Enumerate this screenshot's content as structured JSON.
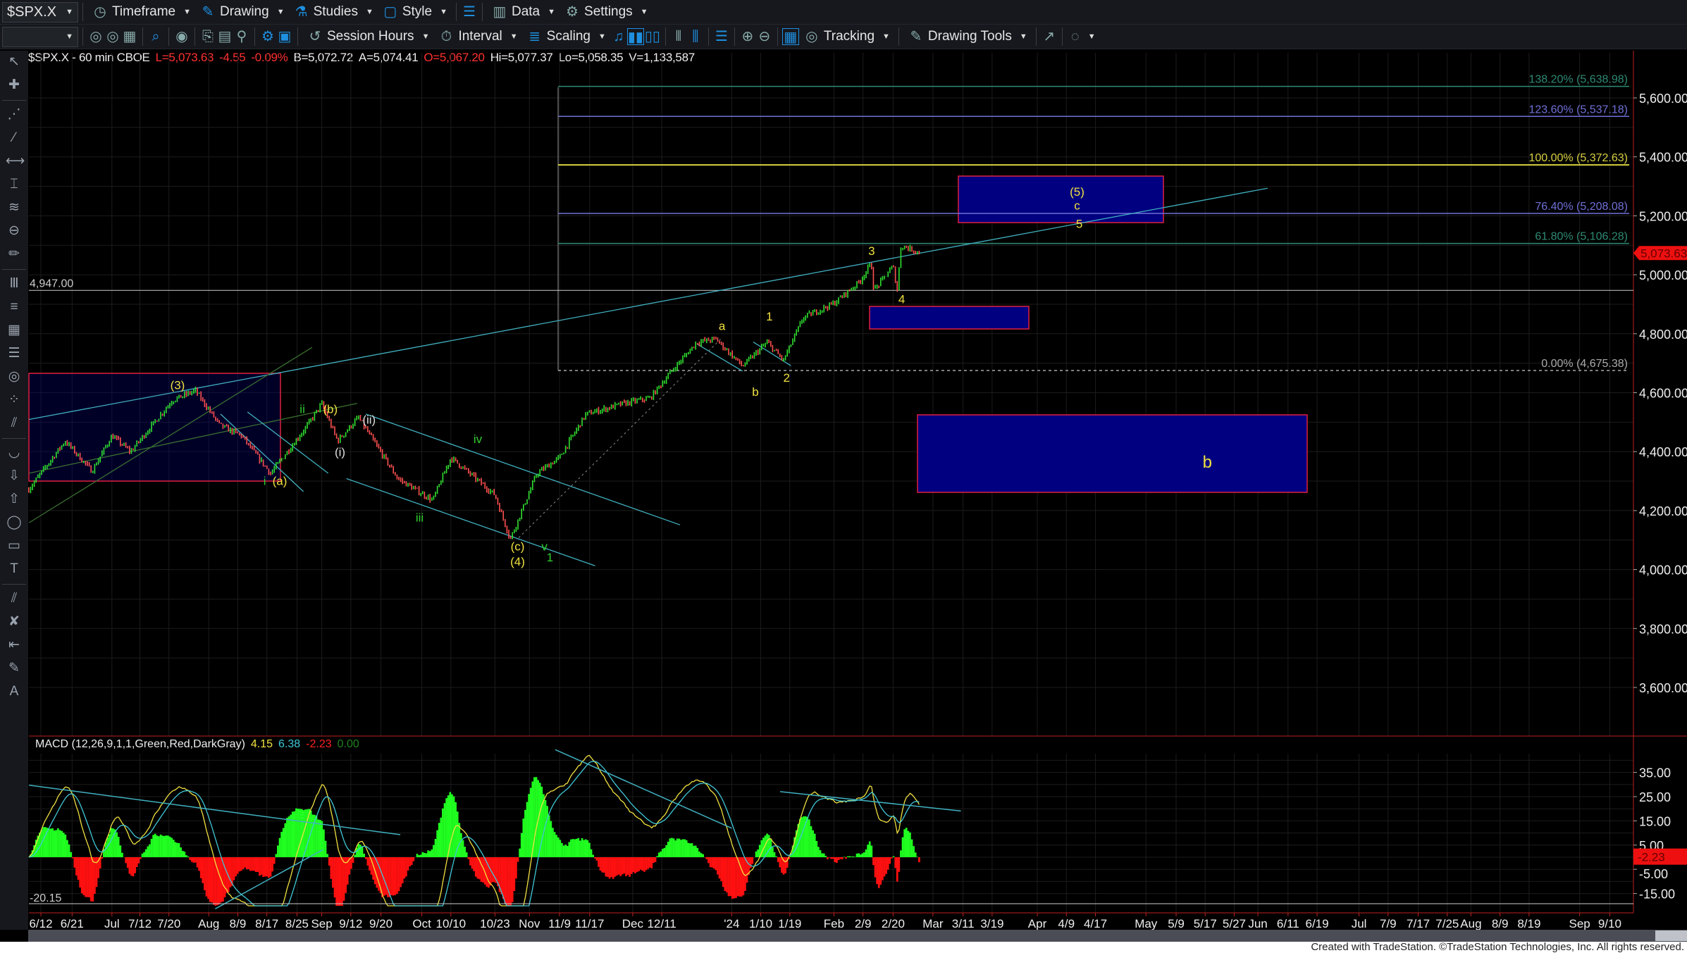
{
  "toolbar1": {
    "symbol": "$SPX.X",
    "items": [
      "Timeframe",
      "Drawing",
      "Studies",
      "Style",
      "Data",
      "Settings"
    ]
  },
  "toolbar2": {
    "items": [
      "Session Hours",
      "Interval",
      "Scaling",
      "Tracking",
      "Drawing Tools"
    ]
  },
  "info": {
    "symbol": "$SPX.X - 60 min  CBOE",
    "last": "L=5,073.63",
    "change": "-4.55",
    "pct": "-0.09%",
    "bid": "B=5,072.72",
    "ask": "A=5,074.41",
    "open": "O=5,067.20",
    "high": "Hi=5,077.37",
    "low": "Lo=5,058.35",
    "volume": "V=1,133,587"
  },
  "price_axis": {
    "labels": [
      "5,600.00",
      "5,400.00",
      "5,200.00",
      "5,000.00",
      "4,800.00",
      "4,600.00",
      "4,400.00",
      "4,200.00",
      "4,000.00",
      "3,800.00",
      "3,600.00"
    ],
    "last_tag": "5,073.63",
    "last": 5073.63
  },
  "horizontal_line": {
    "label": "4,947.00",
    "value": 4947
  },
  "fib": [
    {
      "label": "138.20% (5,638.98)",
      "value": 5638.98,
      "color": "#2e8b74"
    },
    {
      "label": "123.60% (5,537.18)",
      "value": 5537.18,
      "color": "#7070d8"
    },
    {
      "label": "100.00% (5,372.63)",
      "value": 5372.63,
      "color": "#d8d040"
    },
    {
      "label": "76.40% (5,208.08)",
      "value": 5208.08,
      "color": "#7070d8"
    },
    {
      "label": "61.80% (5,106.28)",
      "value": 5106.28,
      "color": "#2e8b74"
    },
    {
      "label": "0.00% (4,675.38)",
      "value": 4675.38,
      "color": "#aaaaaa"
    }
  ],
  "wave_labels": [
    {
      "t": "(3)",
      "c": "#f0e040"
    },
    {
      "t": "ii",
      "c": "#30d030"
    },
    {
      "t": "(b)",
      "c": "#f0e040"
    },
    {
      "t": "(ii)",
      "c": "#dddddd"
    },
    {
      "t": "(i)",
      "c": "#dddddd"
    },
    {
      "t": "i",
      "c": "#30d030"
    },
    {
      "t": "(a)",
      "c": "#f0e040"
    },
    {
      "t": "iii",
      "c": "#30d030"
    },
    {
      "t": "iv",
      "c": "#30d030"
    },
    {
      "t": "(c)",
      "c": "#f0e040"
    },
    {
      "t": "(4)",
      "c": "#f0e040"
    },
    {
      "t": "v",
      "c": "#30d030"
    },
    {
      "t": "1",
      "c": "#30d030"
    },
    {
      "t": "a",
      "c": "#f0e040"
    },
    {
      "t": "b",
      "c": "#f0e040"
    },
    {
      "t": "1",
      "c": "#f0e040"
    },
    {
      "t": "2",
      "c": "#f0e040"
    },
    {
      "t": "3",
      "c": "#f0e040"
    },
    {
      "t": "4",
      "c": "#f0e040"
    },
    {
      "t": "(5)",
      "c": "#f0e040"
    },
    {
      "t": "c",
      "c": "#f0e040"
    },
    {
      "t": "5",
      "c": "#f0e040"
    },
    {
      "t": "b",
      "c": "#f0e040"
    }
  ],
  "price_pivots": [
    [
      "2023-06-08",
      4272
    ],
    [
      "2023-06-19",
      4436
    ],
    [
      "2023-06-27",
      4334
    ],
    [
      "2023-07-03",
      4454
    ],
    [
      "2023-07-09",
      4400
    ],
    [
      "2023-07-21",
      4574
    ],
    [
      "2023-07-28",
      4607
    ],
    [
      "2023-08-04",
      4490
    ],
    [
      "2023-08-10",
      4454
    ],
    [
      "2023-08-18",
      4326
    ],
    [
      "2023-08-28",
      4490
    ],
    [
      "2023-09-01",
      4563
    ],
    [
      "2023-09-07",
      4436
    ],
    [
      "2023-09-14",
      4516
    ],
    [
      "2023-09-25",
      4308
    ],
    [
      "2023-10-05",
      4235
    ],
    [
      "2023-10-10",
      4380
    ],
    [
      "2023-10-23",
      4253
    ],
    [
      "2023-10-27",
      4103
    ],
    [
      "2023-11-03",
      4326
    ],
    [
      "2023-11-09",
      4380
    ],
    [
      "2023-11-16",
      4527
    ],
    [
      "2023-11-28",
      4563
    ],
    [
      "2023-12-07",
      4582
    ],
    [
      "2023-12-14",
      4672
    ],
    [
      "2023-12-22",
      4771
    ],
    [
      "2023-12-28",
      4782
    ],
    [
      "2024-01-05",
      4690
    ],
    [
      "2024-01-12",
      4771
    ],
    [
      "2024-01-17",
      4709
    ],
    [
      "2024-01-23",
      4855
    ],
    [
      "2024-02-01",
      4903
    ],
    [
      "2024-02-08",
      4976
    ],
    [
      "2024-02-12",
      5038
    ],
    [
      "2024-02-13",
      4946
    ],
    [
      "2024-02-20",
      5030
    ],
    [
      "2024-02-21",
      4946
    ],
    [
      "2024-02-22",
      5100
    ],
    [
      "2024-02-27",
      5073.63
    ]
  ],
  "macd": {
    "label": "MACD (12,26,9,1,1,Green,Red,DarkGray)",
    "v1": "4.15",
    "v2": "6.38",
    "v3": "-2.23",
    "v4": "0.00",
    "min_label": "-20.15",
    "axis": [
      "35.00",
      "25.00",
      "15.00",
      "5.00",
      "-5.00",
      "-15.00"
    ],
    "last_tag": "-2.23",
    "colors": {
      "macd": "#f0e040",
      "signal": "#40c8d8",
      "hist_up": "#20ff20",
      "hist_down": "#ff1010"
    }
  },
  "date_axis": [
    "6/12",
    "6/21",
    "Jul",
    "7/12",
    "7/20",
    "Aug",
    "8/9",
    "8/17",
    "8/25",
    "Sep",
    "9/12",
    "9/20",
    "Oct",
    "10/10",
    "10/23",
    "Nov",
    "11/9",
    "11/17",
    "Dec",
    "12/11",
    "'24",
    "1/10",
    "1/19",
    "Feb",
    "2/9",
    "2/20",
    "Mar",
    "3/11",
    "3/19",
    "Apr",
    "4/9",
    "4/17",
    "May",
    "5/9",
    "5/17",
    "5/27",
    "Jun",
    "6/11",
    "6/19",
    "Jul",
    "7/9",
    "7/17",
    "7/25",
    "Aug",
    "8/9",
    "8/19",
    "Sep",
    "9/10"
  ],
  "footer": "Created with TradeStation. ©TradeStation Technologies, Inc. All rights reserved.",
  "colors": {
    "background": "#000000",
    "up": "#30e030",
    "down": "#ff5050",
    "zone_fill": "#000080",
    "zone_border": "#e02040",
    "trendline": "#40b0c0"
  }
}
